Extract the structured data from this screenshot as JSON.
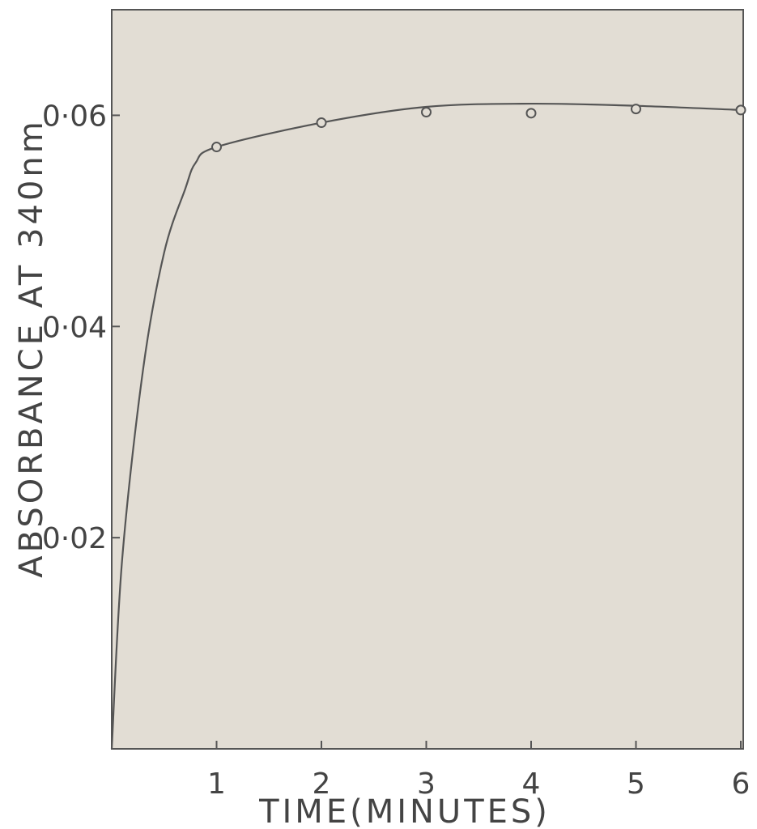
{
  "chart_data": {
    "type": "line",
    "title": "",
    "xlabel": "TIME(MINUTES)",
    "ylabel": "ABSORBANCE AT 340nm",
    "xlim": [
      0,
      6
    ],
    "ylim": [
      0,
      0.07
    ],
    "x_ticks": [
      {
        "value": 1,
        "label": "1"
      },
      {
        "value": 2,
        "label": "2"
      },
      {
        "value": 3,
        "label": "3"
      },
      {
        "value": 4,
        "label": "4"
      },
      {
        "value": 5,
        "label": "5"
      },
      {
        "value": 6,
        "label": "6"
      }
    ],
    "y_ticks": [
      {
        "value": 0.02,
        "label": "0·02"
      },
      {
        "value": 0.04,
        "label": "0·04"
      },
      {
        "value": 0.06,
        "label": "0·06"
      }
    ],
    "grid": false,
    "series": [
      {
        "marker": "open-circle",
        "points": [
          {
            "x": 1,
            "y": 0.057
          },
          {
            "x": 2,
            "y": 0.0593
          },
          {
            "x": 3,
            "y": 0.0603
          },
          {
            "x": 4,
            "y": 0.0602
          },
          {
            "x": 5,
            "y": 0.0606
          },
          {
            "x": 6,
            "y": 0.0605
          }
        ],
        "curve": [
          {
            "x": 0,
            "y": 0.0
          },
          {
            "x": 0.1,
            "y": 0.018
          },
          {
            "x": 0.3,
            "y": 0.036
          },
          {
            "x": 0.5,
            "y": 0.047
          },
          {
            "x": 0.7,
            "y": 0.053
          },
          {
            "x": 0.8,
            "y": 0.0555
          },
          {
            "x": 1.0,
            "y": 0.057
          },
          {
            "x": 2.0,
            "y": 0.0593
          },
          {
            "x": 3.0,
            "y": 0.0608
          },
          {
            "x": 4.0,
            "y": 0.0611
          },
          {
            "x": 5.0,
            "y": 0.0609
          },
          {
            "x": 6.0,
            "y": 0.0605
          }
        ]
      }
    ],
    "colors": {
      "plot_background": "#e2ddd4",
      "ink": "#555555",
      "page_background": "#ffffff"
    }
  }
}
